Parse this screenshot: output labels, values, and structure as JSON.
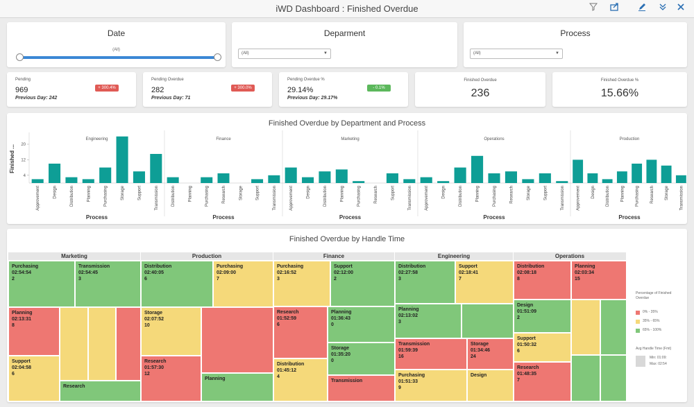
{
  "window": {
    "title": "iWD Dashboard : Finished Overdue"
  },
  "toolbar": {
    "icons": [
      "filter-icon",
      "share-icon",
      "edit-icon",
      "collapse-icon",
      "close-icon"
    ]
  },
  "filters": {
    "date": {
      "title": "Date",
      "value": "(All)"
    },
    "department": {
      "title": "Deparment",
      "value": "(All)"
    },
    "process": {
      "title": "Process",
      "value": "(All)"
    }
  },
  "kpis": {
    "pending": {
      "label": "Pending",
      "value": "969",
      "prev": "Previous Day: 242",
      "badge": "+ 300.4%",
      "badge_color": "#e05a55"
    },
    "pending_overdue": {
      "label": "Pending Overdue",
      "value": "282",
      "prev": "Previous Day: 71",
      "badge": "+ 300.0%",
      "badge_color": "#e05a55"
    },
    "pending_overdue_pct": {
      "label": "Pending Overdue %",
      "value": "29.14%",
      "prev": "Previous Day: 29.17%",
      "badge": "- 0.1%",
      "badge_color": "#5cb85c"
    },
    "finished_overdue": {
      "label": "Finished Overdue",
      "value": "236"
    },
    "finished_overdue_pct": {
      "label": "Finished Overdue %",
      "value": "15.66%"
    }
  },
  "bar_chart": {
    "title": "Finished Overdue by Department and Process",
    "ylabel": "Finished ...",
    "xlabel": "Process"
  },
  "chart_data": {
    "type": "bar",
    "title": "Finished Overdue by Department and Process",
    "ylabel": "Finished ...",
    "xlabel": "Process",
    "yticks": [
      4,
      12,
      20
    ],
    "ylim": [
      0,
      25
    ],
    "color": "#0e9e96",
    "panels": [
      {
        "name": "Engineering",
        "categories": [
          "Approvement",
          "Design",
          "Distribution",
          "Planning",
          "Purchasing",
          "Storage",
          "Support",
          "Transmission"
        ],
        "values": [
          2,
          10,
          3,
          2,
          8,
          24,
          6,
          15
        ]
      },
      {
        "name": "Finance",
        "categories": [
          "Distribution",
          "Planning",
          "Purchasing",
          "Research",
          "Storage",
          "Support",
          "Transmission"
        ],
        "values": [
          3,
          0,
          3,
          5,
          0,
          2,
          4
        ]
      },
      {
        "name": "Marketing",
        "categories": [
          "Approvement",
          "Design",
          "Distribution",
          "Planning",
          "Purchasing",
          "Research",
          "Support",
          "Transmission"
        ],
        "values": [
          8,
          3,
          6,
          7,
          1,
          0,
          5,
          2
        ]
      },
      {
        "name": "Operations",
        "categories": [
          "Approvement",
          "Design",
          "Distribution",
          "Planning",
          "Purchasing",
          "Research",
          "Storage",
          "Support",
          "Transmission"
        ],
        "values": [
          3,
          1,
          8,
          14,
          5,
          6,
          2,
          5,
          1
        ]
      },
      {
        "name": "Production",
        "categories": [
          "Approvement",
          "Design",
          "Distribution",
          "Planning",
          "Purchasing",
          "Research",
          "Storage",
          "Transmission"
        ],
        "values": [
          12,
          5,
          2,
          6,
          10,
          12,
          9,
          4
        ]
      }
    ]
  },
  "treemap": {
    "title": "Finished Overdue by Handle Time",
    "departments": [
      "Marketing",
      "Production",
      "Finance",
      "Engineering",
      "Operations"
    ],
    "cells": [
      {
        "name": "Purchasing",
        "time": "02:54:54",
        "count": "2",
        "color": "grn"
      },
      {
        "name": "Transmission",
        "time": "02:54:45",
        "count": "3",
        "color": "grn"
      },
      {
        "name": "Planning",
        "time": "02:13:31",
        "count": "8",
        "color": "red"
      },
      {
        "name": "Support",
        "time": "02:04:58",
        "count": "6",
        "color": "yel"
      },
      {
        "name": "Research",
        "time": "",
        "count": "",
        "color": "grn"
      },
      {
        "name": "Distribution",
        "time": "02:40:05",
        "count": "6",
        "color": "grn"
      },
      {
        "name": "Purchasing",
        "time": "02:09:00",
        "count": "7",
        "color": "yel"
      },
      {
        "name": "Storage",
        "time": "02:07:52",
        "count": "10",
        "color": "yel"
      },
      {
        "name": "Research",
        "time": "01:57:30",
        "count": "12",
        "color": "red"
      },
      {
        "name": "Planning",
        "time": "",
        "count": "",
        "color": "grn"
      },
      {
        "name": "Purchasing",
        "time": "02:16:52",
        "count": "3",
        "color": "yel"
      },
      {
        "name": "Support",
        "time": "02:12:00",
        "count": "2",
        "color": "grn"
      },
      {
        "name": "Research",
        "time": "01:52:59",
        "count": "6",
        "color": "red"
      },
      {
        "name": "Planning",
        "time": "01:36:43",
        "count": "0",
        "color": "grn"
      },
      {
        "name": "Storage",
        "time": "01:35:20",
        "count": "0",
        "color": "grn"
      },
      {
        "name": "Distribution",
        "time": "01:45:12",
        "count": "4",
        "color": "yel"
      },
      {
        "name": "Transmission",
        "time": "",
        "count": "",
        "color": "red"
      },
      {
        "name": "Distribution",
        "time": "02:27:58",
        "count": "3",
        "color": "grn"
      },
      {
        "name": "Support",
        "time": "02:18:41",
        "count": "7",
        "color": "yel"
      },
      {
        "name": "Planning",
        "time": "02:13:02",
        "count": "3",
        "color": "grn"
      },
      {
        "name": "Transmission",
        "time": "01:59:39",
        "count": "16",
        "color": "red"
      },
      {
        "name": "Storage",
        "time": "01:34:46",
        "count": "24",
        "color": "red"
      },
      {
        "name": "Purchasing",
        "time": "01:51:33",
        "count": "9",
        "color": "yel"
      },
      {
        "name": "Design",
        "time": "",
        "count": "",
        "color": "yel"
      },
      {
        "name": "Distribution",
        "time": "02:08:18",
        "count": "8",
        "color": "red"
      },
      {
        "name": "Planning",
        "time": "02:03:34",
        "count": "15",
        "color": "red"
      },
      {
        "name": "Design",
        "time": "01:51:09",
        "count": "2",
        "color": "grn"
      },
      {
        "name": "Support",
        "time": "01:50:32",
        "count": "6",
        "color": "yel"
      },
      {
        "name": "Research",
        "time": "01:48:35",
        "count": "7",
        "color": "red"
      }
    ]
  },
  "legend": {
    "title": "Percentage of Finished Overdue",
    "items": [
      {
        "label": "0% - 35%",
        "color": "#ee7772"
      },
      {
        "label": "35% - 65%",
        "color": "#f5d97a"
      },
      {
        "label": "65% - 100%",
        "color": "#80c77a"
      }
    ],
    "size_title": "Avg Handle Time (Fmt)",
    "min": "Min: 01:09:",
    "max": "Max: 02:54"
  }
}
